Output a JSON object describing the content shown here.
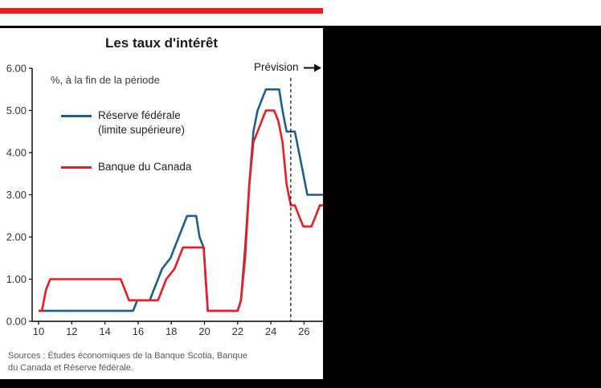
{
  "chart": {
    "title": "Les taux d'intérêt",
    "annotation": "%, à la fin de la période",
    "forecast_label": "Prévision"
  },
  "legend": {
    "fed_line1": "Réserve fédérale",
    "fed_line2": "(limite supérieure)",
    "boc_label": "Banque du Canada"
  },
  "sources": {
    "line1": "Sources : Études économiques de la Banque Scotia, Banque",
    "line2": "du Canada  et Réserve fédérale."
  },
  "colors": {
    "fed_blue": "#1f5f8b",
    "boc_red": "#ed1c24",
    "brand_red_bar": "#ed1c24",
    "background_black": "#000000"
  },
  "chart_data": {
    "type": "line",
    "title": "Les taux d'intérêt",
    "unit_annotation": "%, à la fin de la période",
    "forecast_label": "Prévision",
    "x_tick_labels": [
      "10",
      "12",
      "14",
      "16",
      "18",
      "20",
      "22",
      "24",
      "26"
    ],
    "y_tick_labels": [
      "0.00",
      "1.00",
      "2.00",
      "3.00",
      "4.00",
      "5.00",
      "6.00"
    ],
    "xlim": [
      9.6,
      27.2
    ],
    "ylim": [
      0,
      6
    ],
    "grid": false,
    "legend_position": "upper-left-inside",
    "forecast_divider_year": 25.2,
    "series": [
      {
        "name": "Réserve fédérale (limite supérieure)",
        "color": "#1f5f8b",
        "points": [
          [
            10,
            0.25
          ],
          [
            15.7,
            0.25
          ],
          [
            15.95,
            0.5
          ],
          [
            16.7,
            0.5
          ],
          [
            16.95,
            0.75
          ],
          [
            17.2,
            1.0
          ],
          [
            17.45,
            1.25
          ],
          [
            17.95,
            1.5
          ],
          [
            18.2,
            1.75
          ],
          [
            18.45,
            2.0
          ],
          [
            18.7,
            2.25
          ],
          [
            18.95,
            2.5
          ],
          [
            19.5,
            2.5
          ],
          [
            19.7,
            2.0
          ],
          [
            19.95,
            1.75
          ],
          [
            20.2,
            0.25
          ],
          [
            22.0,
            0.25
          ],
          [
            22.2,
            0.5
          ],
          [
            22.45,
            1.75
          ],
          [
            22.7,
            3.25
          ],
          [
            22.95,
            4.5
          ],
          [
            23.2,
            5.0
          ],
          [
            23.45,
            5.25
          ],
          [
            23.7,
            5.5
          ],
          [
            24.5,
            5.5
          ],
          [
            24.7,
            5.0
          ],
          [
            24.95,
            4.5
          ],
          [
            25.45,
            4.5
          ],
          [
            25.7,
            4.0
          ],
          [
            25.95,
            3.5
          ],
          [
            26.2,
            3.0
          ],
          [
            27.15,
            3.0
          ]
        ]
      },
      {
        "name": "Banque du Canada",
        "color": "#ed1c24",
        "points": [
          [
            10,
            0.25
          ],
          [
            10.2,
            0.25
          ],
          [
            10.45,
            0.75
          ],
          [
            10.7,
            1.0
          ],
          [
            14.95,
            1.0
          ],
          [
            15.2,
            0.75
          ],
          [
            15.45,
            0.5
          ],
          [
            17.2,
            0.5
          ],
          [
            17.45,
            0.75
          ],
          [
            17.7,
            1.0
          ],
          [
            18.2,
            1.25
          ],
          [
            18.45,
            1.5
          ],
          [
            18.7,
            1.75
          ],
          [
            19.95,
            1.75
          ],
          [
            20.2,
            0.25
          ],
          [
            22.0,
            0.25
          ],
          [
            22.2,
            0.5
          ],
          [
            22.45,
            1.5
          ],
          [
            22.7,
            3.25
          ],
          [
            22.95,
            4.25
          ],
          [
            23.2,
            4.5
          ],
          [
            23.45,
            4.75
          ],
          [
            23.7,
            5.0
          ],
          [
            24.2,
            5.0
          ],
          [
            24.45,
            4.75
          ],
          [
            24.7,
            4.25
          ],
          [
            24.95,
            3.25
          ],
          [
            25.2,
            2.75
          ],
          [
            25.45,
            2.75
          ],
          [
            25.7,
            2.5
          ],
          [
            25.95,
            2.25
          ],
          [
            26.45,
            2.25
          ],
          [
            26.7,
            2.5
          ],
          [
            26.95,
            2.75
          ],
          [
            27.15,
            2.75
          ]
        ]
      }
    ]
  }
}
